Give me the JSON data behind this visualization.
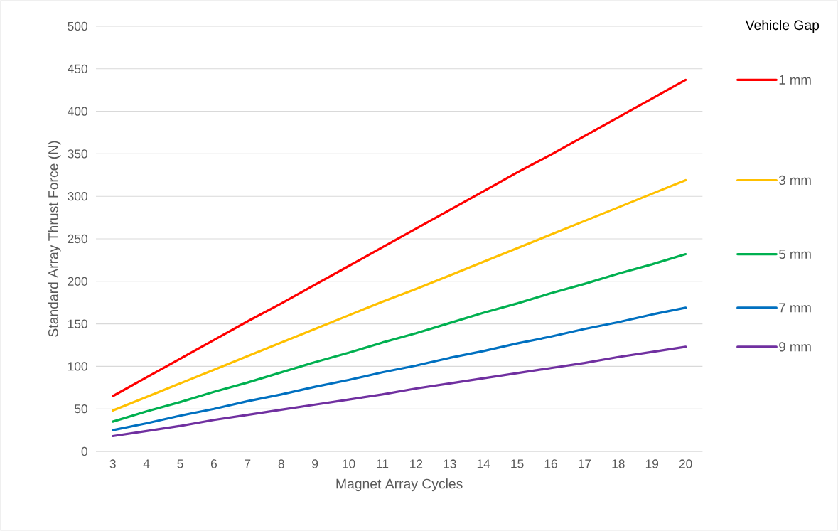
{
  "chart_data": {
    "type": "line",
    "xlabel": "Magnet Array Cycles",
    "ylabel": "Standard Array Thrust Force (N)",
    "legend_title": "Vehicle Gap",
    "categories": [
      "3",
      "4",
      "5",
      "6",
      "7",
      "8",
      "9",
      "10",
      "11",
      "12",
      "13",
      "14",
      "15",
      "16",
      "17",
      "18",
      "19",
      "20"
    ],
    "ylim": [
      0,
      500
    ],
    "yticks": [
      0,
      50,
      100,
      150,
      200,
      250,
      300,
      350,
      400,
      450,
      500
    ],
    "grid": "y",
    "legend": "right",
    "marker": "none",
    "line_style": "solid",
    "series": [
      {
        "name": "1 mm",
        "color": "#ff0000",
        "values": [
          65,
          87,
          109,
          131,
          153,
          174,
          196,
          218,
          240,
          262,
          284,
          306,
          328,
          349,
          371,
          393,
          415,
          437
        ]
      },
      {
        "name": "3 mm",
        "color": "#ffc000",
        "values": [
          48,
          64,
          80,
          96,
          112,
          128,
          144,
          160,
          176,
          191,
          207,
          223,
          239,
          255,
          271,
          287,
          303,
          319
        ]
      },
      {
        "name": "5 mm",
        "color": "#00b050",
        "values": [
          35,
          47,
          58,
          70,
          81,
          93,
          105,
          116,
          128,
          139,
          151,
          163,
          174,
          186,
          197,
          209,
          220,
          232
        ]
      },
      {
        "name": "7 mm",
        "color": "#0070c0",
        "values": [
          25,
          33,
          42,
          50,
          59,
          67,
          76,
          84,
          93,
          101,
          110,
          118,
          127,
          135,
          144,
          152,
          161,
          169
        ]
      },
      {
        "name": "9 mm",
        "color": "#7030a0",
        "values": [
          18,
          24,
          30,
          37,
          43,
          49,
          55,
          61,
          67,
          74,
          80,
          86,
          92,
          98,
          104,
          111,
          117,
          123
        ]
      }
    ]
  }
}
